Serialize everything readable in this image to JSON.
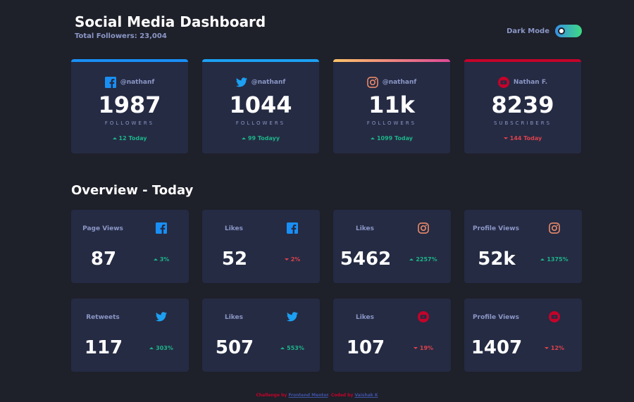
{
  "header": {
    "title": "Social Media Dashboard",
    "subtitle": "Total Followers: 23,004",
    "toggle_label": "Dark Mode",
    "toggle_on": true
  },
  "colors": {
    "background": "#1e202a",
    "card": "#252b43",
    "muted_text": "#8b97c6",
    "up": "#1db489",
    "down": "#dc414c",
    "facebook": "#198ff5",
    "twitter": "#1ca0f2",
    "instagram_start": "#fdc468",
    "instagram_end": "#df4996",
    "youtube": "#c4032a"
  },
  "follower_cards": [
    {
      "platform": "facebook",
      "icon": "facebook-icon",
      "handle": "@nathanf",
      "count": "1987",
      "unit": "FOLLOWERS",
      "today": "12 Today",
      "trend": "up"
    },
    {
      "platform": "twitter",
      "icon": "twitter-icon",
      "handle": "@nathanf",
      "count": "1044",
      "unit": "FOLLOWERS",
      "today": "99 Todayy",
      "trend": "up"
    },
    {
      "platform": "instagram",
      "icon": "instagram-icon",
      "handle": "@nathanf",
      "count": "11k",
      "unit": "FOLLOWERS",
      "today": "1099 Today",
      "trend": "up"
    },
    {
      "platform": "youtube",
      "icon": "youtube-icon",
      "handle": "Nathan F.",
      "count": "8239",
      "unit": "SUBSCRIBERS",
      "today": "144 Today",
      "trend": "down"
    }
  ],
  "overview": {
    "title": "Overview - Today",
    "items": [
      {
        "label": "Page Views",
        "platform": "facebook",
        "icon": "facebook-icon",
        "value": "87",
        "pct": "3%",
        "trend": "up"
      },
      {
        "label": "Likes",
        "platform": "facebook",
        "icon": "facebook-icon",
        "value": "52",
        "pct": "2%",
        "trend": "down"
      },
      {
        "label": "Likes",
        "platform": "instagram",
        "icon": "instagram-icon",
        "value": "5462",
        "pct": "2257%",
        "trend": "up"
      },
      {
        "label": "Profile Views",
        "platform": "instagram",
        "icon": "instagram-icon",
        "value": "52k",
        "pct": "1375%",
        "trend": "up"
      },
      {
        "label": "Retweets",
        "platform": "twitter",
        "icon": "twitter-icon",
        "value": "117",
        "pct": "303%",
        "trend": "up"
      },
      {
        "label": "Likes",
        "platform": "twitter",
        "icon": "twitter-icon",
        "value": "507",
        "pct": "553%",
        "trend": "up"
      },
      {
        "label": "Likes",
        "platform": "youtube",
        "icon": "youtube-icon",
        "value": "107",
        "pct": "19%",
        "trend": "down"
      },
      {
        "label": "Profile Views",
        "platform": "youtube",
        "icon": "youtube-icon",
        "value": "1407",
        "pct": "12%",
        "trend": "down"
      }
    ]
  },
  "footer": {
    "prefix": "Challenge by ",
    "link1": "Frontend Mentor",
    "middle": ". Coded by ",
    "link2": "Vaishak K"
  }
}
